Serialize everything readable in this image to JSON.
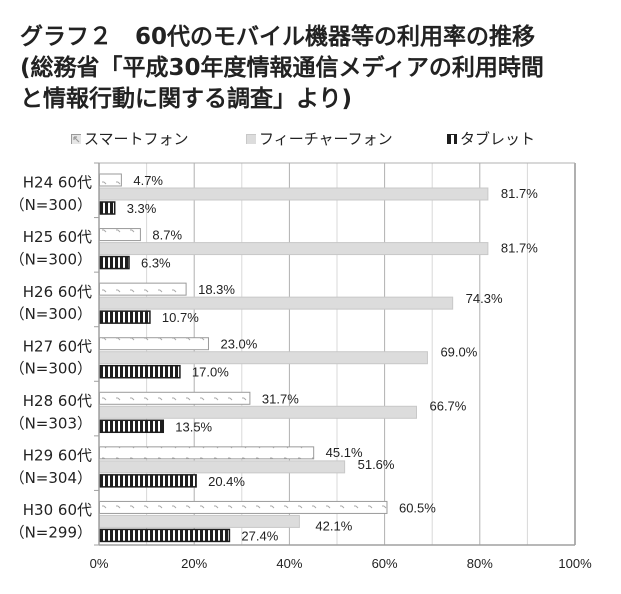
{
  "title": {
    "line1": "グラフ２　60代のモバイル機器等の利用率の推移",
    "line2": "(総務省「平成30年度情報通信メディアの利用時間",
    "line3": "と情報行動に関する調査」より)"
  },
  "colors": {
    "smartphone_border": "#9a9a9a",
    "smartphone_pattern": "#a8a8a8",
    "feature_fill": "#dcdcdc",
    "feature_border": "#c8c8c8",
    "tablet_fill": "#1e1e1e",
    "gridline_light": "#d8d8d8",
    "gridline_dark": "#b0b0b0",
    "axis": "#a0a0a0"
  },
  "chart_data": {
    "type": "bar",
    "orientation": "horizontal",
    "title": "グラフ２　60代のモバイル機器等の利用率の推移",
    "categories": [
      {
        "line1": "H24 60代",
        "line2": "（N=300）"
      },
      {
        "line1": "H25 60代",
        "line2": "（N=300）"
      },
      {
        "line1": "H26 60代",
        "line2": "（N=300）"
      },
      {
        "line1": "H27 60代",
        "line2": "（N=300）"
      },
      {
        "line1": "H28 60代",
        "line2": "（N=303）"
      },
      {
        "line1": "H29 60代",
        "line2": "（N=304）"
      },
      {
        "line1": "H30 60代",
        "line2": "（N=299）"
      }
    ],
    "series": [
      {
        "name": "スマートフォン",
        "key": "smartphone",
        "values": [
          4.7,
          8.7,
          18.3,
          23.0,
          31.7,
          45.1,
          60.5
        ],
        "labels": [
          "4.7%",
          "8.7%",
          "18.3%",
          "23.0%",
          "31.7%",
          "45.1%",
          "60.5%"
        ]
      },
      {
        "name": "フィーチャーフォン",
        "key": "feature",
        "values": [
          81.7,
          81.7,
          74.3,
          69.0,
          66.7,
          51.6,
          42.1
        ],
        "labels": [
          "81.7%",
          "81.7%",
          "74.3%",
          "69.0%",
          "66.7%",
          "51.6%",
          "42.1%"
        ]
      },
      {
        "name": "タブレット",
        "key": "tablet",
        "values": [
          3.3,
          6.3,
          10.7,
          17.0,
          13.5,
          20.4,
          27.4
        ],
        "labels": [
          "3.3%",
          "6.3%",
          "10.7%",
          "17.0%",
          "13.5%",
          "20.4%",
          "27.4%"
        ]
      }
    ],
    "xlim": [
      0,
      100
    ],
    "xticks": [
      0,
      20,
      40,
      60,
      80,
      100
    ],
    "xtick_labels": [
      "0%",
      "20%",
      "40%",
      "60%",
      "80%",
      "100%"
    ],
    "minor_grid_step": 10,
    "grid": true,
    "legend_position": "top",
    "xlabel": "",
    "ylabel": ""
  }
}
